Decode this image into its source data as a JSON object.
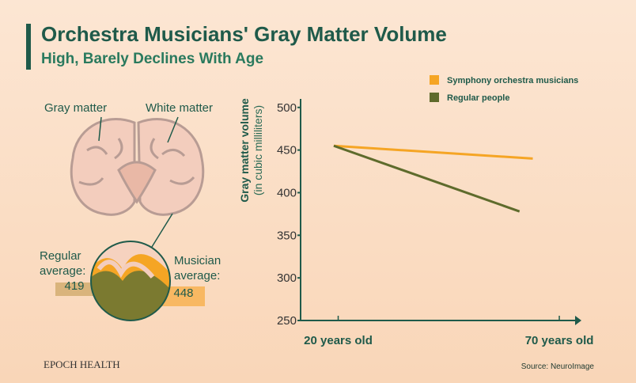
{
  "chart_data": {
    "type": "line",
    "title": "Orchestra Musicians' Gray Matter Volume",
    "subtitle": "High, Barely Declines With Age",
    "y_label": "Gray matter volume",
    "y_label_units": "(in cubic milliliters)",
    "xlim": [
      11.5,
      75
    ],
    "xticks": [
      {
        "value": 20,
        "label": "20 years old"
      },
      {
        "value": 70,
        "label": "70 years old"
      }
    ],
    "ylim": [
      250,
      510
    ],
    "yticks": [
      250,
      300,
      350,
      400,
      450,
      500
    ],
    "legend": "top-right",
    "series": [
      {
        "name": "Symphony orchestra musicians",
        "color": "#f5a524",
        "x": [
          19,
          64
        ],
        "values": [
          455,
          440
        ]
      },
      {
        "name": "Regular people",
        "color": "#5e6b2c",
        "x": [
          19,
          61
        ],
        "values": [
          455,
          378
        ]
      }
    ]
  },
  "illustration": {
    "gray_label": "Gray matter",
    "white_label": "White matter",
    "regular_label": "Regular average:",
    "regular_value": "419",
    "musician_label": "Musician average:",
    "musician_value": "448"
  },
  "footer": {
    "brand": "EPOCH HEALTH",
    "source": "Source: NeuroImage"
  }
}
